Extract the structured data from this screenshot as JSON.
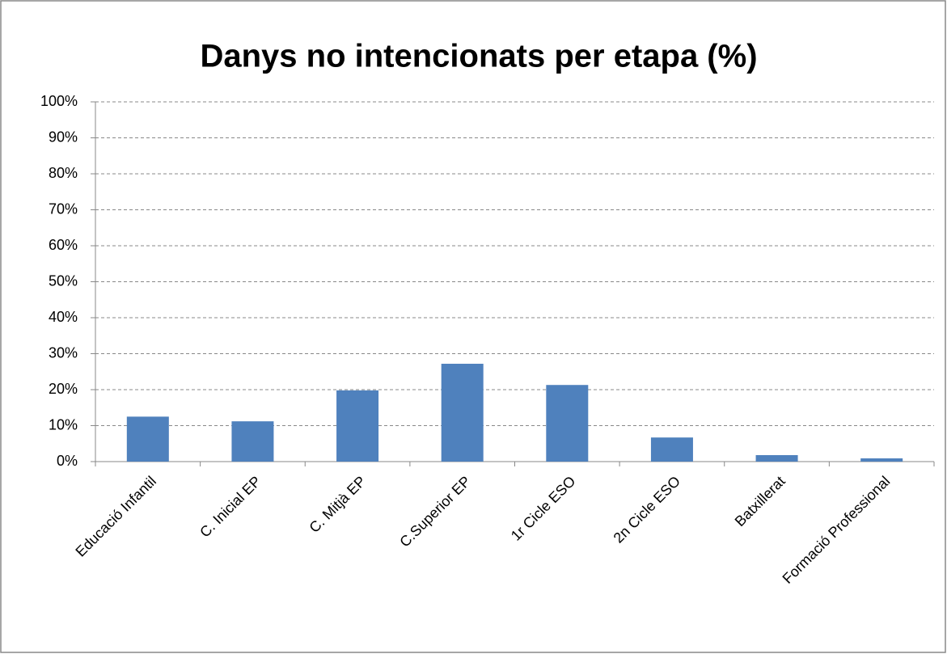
{
  "chart_data": {
    "type": "bar",
    "title": "Danys no intencionats per etapa (%)",
    "categories": [
      "Educació Infantil",
      "C. Inicial EP",
      "C. Mitjà EP",
      "C.Superior EP",
      "1r Cicle ESO",
      "2n Cicle ESO",
      "Batxillerat",
      "Formació Professional"
    ],
    "values": [
      12.5,
      11.2,
      19.8,
      27.2,
      21.3,
      6.7,
      1.8,
      0.9
    ],
    "color": "#4f81bd",
    "ylim": [
      0,
      100
    ],
    "yticks": [
      {
        "value": 0,
        "label": "0%"
      },
      {
        "value": 10,
        "label": "10%"
      },
      {
        "value": 20,
        "label": "20%"
      },
      {
        "value": 30,
        "label": "30%"
      },
      {
        "value": 40,
        "label": "40%"
      },
      {
        "value": 50,
        "label": "50%"
      },
      {
        "value": 60,
        "label": "60%"
      },
      {
        "value": 70,
        "label": "70%"
      },
      {
        "value": 80,
        "label": "80%"
      },
      {
        "value": 90,
        "label": "90%"
      },
      {
        "value": 100,
        "label": "100%"
      }
    ],
    "grid": true
  }
}
